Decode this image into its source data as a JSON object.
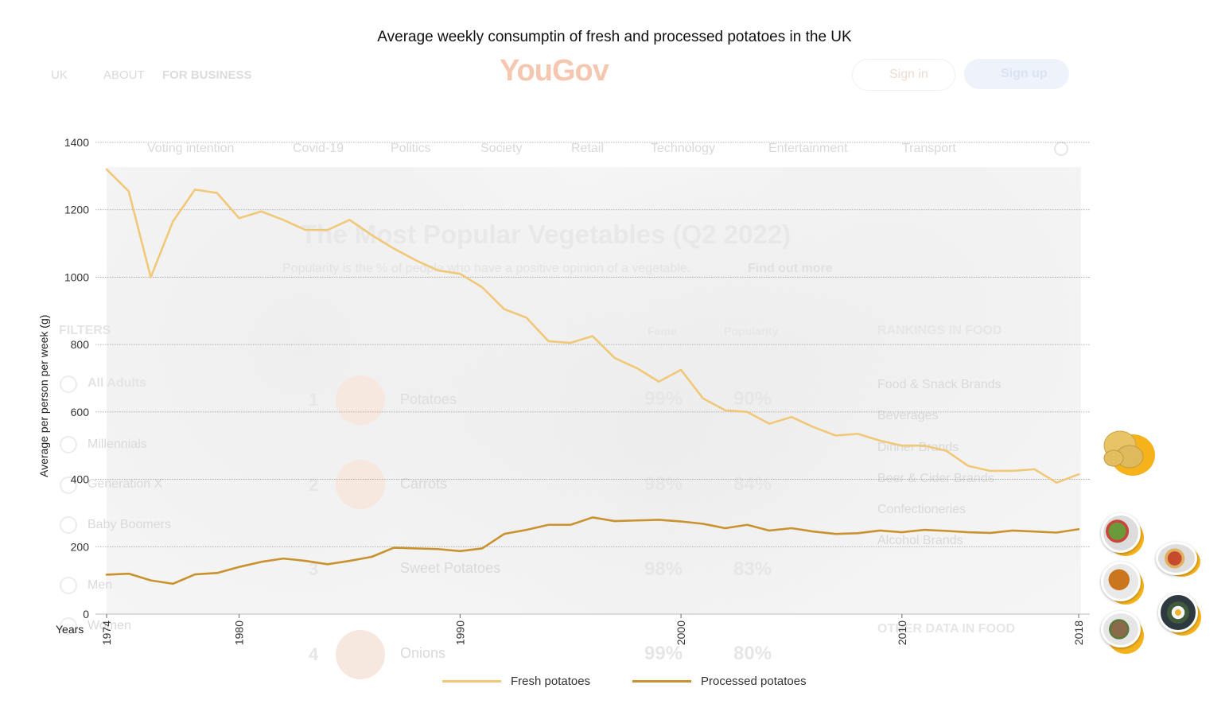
{
  "background_page": {
    "nav": {
      "region": "UK",
      "about": "ABOUT",
      "for_business": "FOR BUSINESS"
    },
    "logo": "YouGov",
    "sign_in": "Sign in",
    "sign_up": "Sign up",
    "categories": [
      "Voting intention",
      "Covid-19",
      "Politics",
      "Society",
      "Retail",
      "Technology",
      "Entertainment",
      "Transport"
    ],
    "heading": "The Most Popular Vegetables (Q2 2022)",
    "subheading_prefix": "Popularity is the % of people who have a positive opinion of a vegetable.",
    "find_out_more": "Find out more",
    "filters_title": "FILTERS",
    "filters": [
      "All Adults",
      "Millennials",
      "Generation X",
      "Baby Boomers",
      "Men",
      "Women"
    ],
    "column_fame": "Fame",
    "column_popularity": "Popularity",
    "rows": [
      {
        "rank": "1",
        "name": "Potatoes",
        "fame": "99%",
        "popularity": "90%"
      },
      {
        "rank": "2",
        "name": "Carrots",
        "fame": "98%",
        "popularity": "84%"
      },
      {
        "rank": "3",
        "name": "Sweet Potatoes",
        "fame": "98%",
        "popularity": "83%"
      },
      {
        "rank": "4",
        "name": "Onions",
        "fame": "99%",
        "popularity": "80%"
      }
    ],
    "rankings_title": "RANKINGS IN FOOD",
    "rankings": [
      "Food & Snack Brands",
      "Beverages",
      "Dinner Brands",
      "Beer & Cider Brands",
      "Confectioneries",
      "Alcohol Brands"
    ],
    "other_data": "OTHER DATA IN FOOD"
  },
  "colors": {
    "fresh": "#f0c877",
    "processed": "#c9922f",
    "grid": "#9a9a9a",
    "accent_orange": "#f5b21b"
  },
  "chart_data": {
    "type": "line",
    "title": "Average weekly consumptin of fresh and processed potatoes in the UK",
    "xlabel": "Years",
    "ylabel": "Average per person per week (g)",
    "xlim": [
      1974,
      2018
    ],
    "ylim": [
      0,
      1400
    ],
    "yticks": [
      0,
      200,
      400,
      600,
      800,
      1000,
      1200,
      1400
    ],
    "xticks": [
      1974,
      1980,
      1990,
      2000,
      2010,
      2018
    ],
    "grid": true,
    "legend_position": "bottom-center",
    "x": [
      1974,
      1975,
      1976,
      1977,
      1978,
      1979,
      1980,
      1981,
      1982,
      1983,
      1984,
      1985,
      1986,
      1987,
      1988,
      1989,
      1990,
      1991,
      1992,
      1993,
      1994,
      1995,
      1996,
      1997,
      1998,
      1999,
      2000,
      2001,
      2002,
      2003,
      2004,
      2005,
      2006,
      2007,
      2008,
      2009,
      2010,
      2011,
      2012,
      2013,
      2014,
      2015,
      2016,
      2017,
      2018
    ],
    "series": [
      {
        "name": "Fresh potatoes",
        "color": "#f0c877",
        "values": [
          1320,
          1255,
          1000,
          1165,
          1260,
          1250,
          1175,
          1195,
          1170,
          1140,
          1140,
          1170,
          1125,
          1085,
          1050,
          1020,
          1010,
          970,
          905,
          880,
          810,
          805,
          825,
          760,
          730,
          690,
          725,
          640,
          605,
          600,
          565,
          585,
          555,
          530,
          535,
          515,
          500,
          500,
          485,
          440,
          425,
          425,
          430,
          390,
          415
        ]
      },
      {
        "name": "Processed potatoes",
        "color": "#c9922f",
        "values": [
          117,
          120,
          100,
          90,
          118,
          122,
          140,
          155,
          165,
          158,
          148,
          158,
          170,
          197,
          195,
          193,
          187,
          195,
          238,
          250,
          265,
          265,
          287,
          276,
          278,
          280,
          275,
          268,
          255,
          265,
          248,
          255,
          245,
          238,
          240,
          248,
          243,
          250,
          247,
          243,
          241,
          248,
          245,
          242,
          252
        ]
      }
    ]
  }
}
